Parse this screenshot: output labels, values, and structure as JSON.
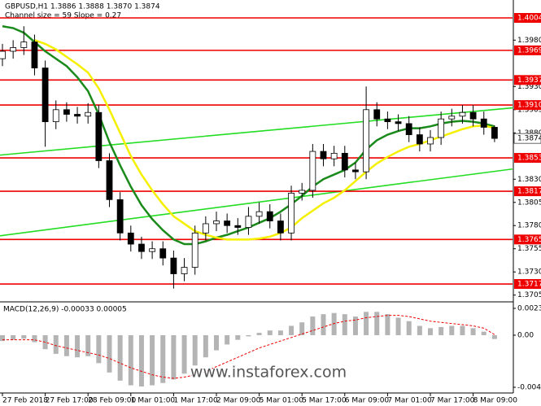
{
  "chart_data": [
    {
      "type": "candlestick",
      "title": "GBPUSD,H1  1.3886 1.3888 1.3870 1.3874",
      "subtitle": "Channel size = 59  Slope = 0.27",
      "categories": [
        "27 Feb 2018",
        null,
        null,
        null,
        "27 Feb 17:00",
        null,
        null,
        null,
        "28 Feb 09:00",
        null,
        null,
        null,
        "1 Mar 01:00",
        null,
        null,
        null,
        "1 Mar 17:00",
        null,
        null,
        null,
        "2 Mar 09:00",
        null,
        null,
        null,
        "5 Mar 01:00",
        null,
        null,
        null,
        "5 Mar 17:00",
        null,
        null,
        null,
        "6 Mar 09:00",
        null,
        null,
        null,
        "7 Mar 01:00",
        null,
        null,
        null,
        "7 Mar 17:00",
        null,
        null,
        null,
        "8 Mar 09:00",
        null,
        null
      ],
      "open": [
        1.396,
        1.3968,
        1.3972,
        1.3978,
        1.395,
        1.3892,
        1.3905,
        1.39,
        1.3898,
        1.3902,
        1.385,
        1.3808,
        1.3772,
        1.376,
        1.3752,
        1.3755,
        1.3745,
        1.3728,
        1.3735,
        1.3772,
        1.3782,
        1.3785,
        1.378,
        1.3778,
        1.379,
        1.3795,
        1.3785,
        1.3772,
        1.3815,
        1.3818,
        1.386,
        1.3852,
        1.3858,
        1.384,
        1.3838,
        1.3905,
        1.3895,
        1.3892,
        1.389,
        1.3878,
        1.3868,
        1.3875,
        1.3895,
        1.3898,
        1.3902,
        1.3895,
        1.3886
      ],
      "high": [
        1.3976,
        1.398,
        1.3995,
        1.3986,
        1.3958,
        1.3915,
        1.3913,
        1.3908,
        1.3912,
        1.391,
        1.3858,
        1.3816,
        1.378,
        1.3768,
        1.3763,
        1.3763,
        1.3753,
        1.3745,
        1.378,
        1.379,
        1.3795,
        1.3793,
        1.3788,
        1.38,
        1.3805,
        1.3803,
        1.3793,
        1.3823,
        1.3826,
        1.3868,
        1.3868,
        1.3866,
        1.3866,
        1.3848,
        1.393,
        1.3913,
        1.3903,
        1.39,
        1.3898,
        1.3886,
        1.3883,
        1.3903,
        1.3906,
        1.391,
        1.391,
        1.3903,
        1.3888
      ],
      "low": [
        1.3952,
        1.396,
        1.3964,
        1.3942,
        1.3865,
        1.3884,
        1.3892,
        1.389,
        1.389,
        1.3842,
        1.38,
        1.3764,
        1.3752,
        1.3744,
        1.3744,
        1.3737,
        1.3712,
        1.372,
        1.3727,
        1.3764,
        1.3774,
        1.3772,
        1.377,
        1.377,
        1.3782,
        1.3777,
        1.3764,
        1.3764,
        1.3807,
        1.381,
        1.3844,
        1.3844,
        1.3832,
        1.383,
        1.383,
        1.3887,
        1.3884,
        1.3882,
        1.387,
        1.386,
        1.386,
        1.3867,
        1.3887,
        1.389,
        1.3887,
        1.3878,
        1.387
      ],
      "close": [
        1.3968,
        1.3972,
        1.3978,
        1.395,
        1.3892,
        1.3905,
        1.39,
        1.3898,
        1.3902,
        1.385,
        1.3808,
        1.3772,
        1.376,
        1.3752,
        1.3755,
        1.3745,
        1.3728,
        1.3735,
        1.3772,
        1.3782,
        1.3785,
        1.378,
        1.3778,
        1.379,
        1.3795,
        1.3785,
        1.3772,
        1.3815,
        1.3818,
        1.386,
        1.3852,
        1.3858,
        1.384,
        1.3838,
        1.3905,
        1.3895,
        1.3892,
        1.389,
        1.3878,
        1.3868,
        1.3875,
        1.3895,
        1.3898,
        1.3902,
        1.3895,
        1.3886,
        1.3874
      ],
      "series": [
        {
          "color": "#1a8a1a",
          "values": [
            1.3995,
            1.3993,
            1.3988,
            1.3978,
            1.3968,
            1.396,
            1.3952,
            1.394,
            1.3925,
            1.39,
            1.387,
            1.3845,
            1.3822,
            1.3802,
            1.3787,
            1.3775,
            1.3765,
            1.376,
            1.376,
            1.3763,
            1.3767,
            1.377,
            1.3774,
            1.3778,
            1.3783,
            1.3788,
            1.3795,
            1.3803,
            1.3812,
            1.3822,
            1.383,
            1.3835,
            1.384,
            1.3848,
            1.3862,
            1.3872,
            1.3878,
            1.3882,
            1.3885,
            1.3885,
            1.3887,
            1.389,
            1.3892,
            1.3893,
            1.3892,
            1.389,
            1.3887
          ]
        },
        {
          "color": "#f5f000",
          "values": [
            null,
            null,
            null,
            1.398,
            1.3976,
            1.397,
            1.3962,
            1.3954,
            1.3945,
            1.3928,
            1.3905,
            1.388,
            1.3855,
            1.3835,
            1.3818,
            1.3803,
            1.379,
            1.3782,
            1.3774,
            1.377,
            1.3767,
            1.3765,
            1.3765,
            1.3765,
            1.3766,
            1.3768,
            1.3772,
            1.3778,
            1.3788,
            1.3796,
            1.3804,
            1.381,
            1.3818,
            1.3828,
            1.3838,
            1.3847,
            1.3854,
            1.386,
            1.3865,
            1.3868,
            1.3872,
            1.3876,
            1.388,
            1.3884,
            1.3887,
            1.3888,
            1.3885
          ]
        }
      ],
      "channel_lines": [
        {
          "color": "#22dd22",
          "values": [
            1.3856,
            1.3907
          ]
        },
        {
          "color": "#22dd22",
          "values": [
            1.3769,
            1.3841
          ]
        }
      ],
      "levels": [
        1.4004,
        1.3969,
        1.3937,
        {
          "value": 1.391,
          "label": "1.3910"
        },
        1.3853,
        1.3817,
        1.3765,
        1.3717
      ],
      "level_color": "#ee0000",
      "current_price": 1.3874,
      "ylim": [
        1.36986,
        1.40233
      ],
      "yticks": [
        {
          "value": 1.398,
          "label": "1.3980"
        },
        {
          "value": 1.393,
          "label": "1.3930"
        },
        1.3905,
        {
          "value": 1.388,
          "label": "1.3880"
        },
        {
          "value": 1.383,
          "label": "1.3830"
        },
        1.3805,
        {
          "value": 1.378,
          "label": "1.3780"
        },
        1.3755,
        {
          "value": 1.373,
          "label": "1.3730"
        },
        1.3705
      ]
    },
    {
      "type": "macd",
      "title": "MACD(12,26,9) -0.00033 0.00005",
      "color": "#b4b4b4",
      "values": [
        -0.0005,
        -0.0004,
        -0.0003,
        -0.0006,
        -0.0012,
        -0.0016,
        -0.0018,
        -0.0019,
        -0.0018,
        -0.0024,
        -0.0032,
        -0.0039,
        -0.0043,
        -0.0044,
        -0.0043,
        -0.0041,
        -0.0038,
        -0.0033,
        -0.0026,
        -0.0019,
        -0.0013,
        -0.0008,
        -0.0004,
        -0.0001,
        0.0002,
        0.0004,
        0.0004,
        0.0008,
        0.0011,
        0.0016,
        0.0018,
        0.0019,
        0.0018,
        0.0016,
        0.002,
        0.002,
        0.0018,
        0.0015,
        0.0012,
        0.0008,
        0.0006,
        0.0007,
        0.0008,
        0.0008,
        0.0006,
        0.0003,
        -0.00033
      ],
      "signal": {
        "color": "#ee0000",
        "values": [
          -0.0004,
          -0.0004,
          -0.0004,
          -0.0004,
          -0.0006,
          -0.0009,
          -0.0011,
          -0.0013,
          -0.0015,
          -0.0017,
          -0.002,
          -0.0024,
          -0.0028,
          -0.0031,
          -0.0034,
          -0.0036,
          -0.0037,
          -0.0036,
          -0.0034,
          -0.0031,
          -0.0027,
          -0.0023,
          -0.0019,
          -0.0015,
          -0.0011,
          -0.0008,
          -0.0005,
          -0.0002,
          0.0001,
          0.0004,
          0.0007,
          0.001,
          0.0012,
          0.0013,
          0.0015,
          0.0016,
          0.0017,
          0.0017,
          0.0016,
          0.0014,
          0.0012,
          0.0011,
          0.001,
          0.0009,
          0.0008,
          0.0006,
          5e-05
        ]
      },
      "ylim": [
        -0.00447,
        0.0023
      ],
      "yticks": [
        0.0023,
        {
          "value": 0,
          "label": "0.00"
        },
        -0.00447
      ]
    }
  ],
  "watermark": "www.instaforex.com"
}
